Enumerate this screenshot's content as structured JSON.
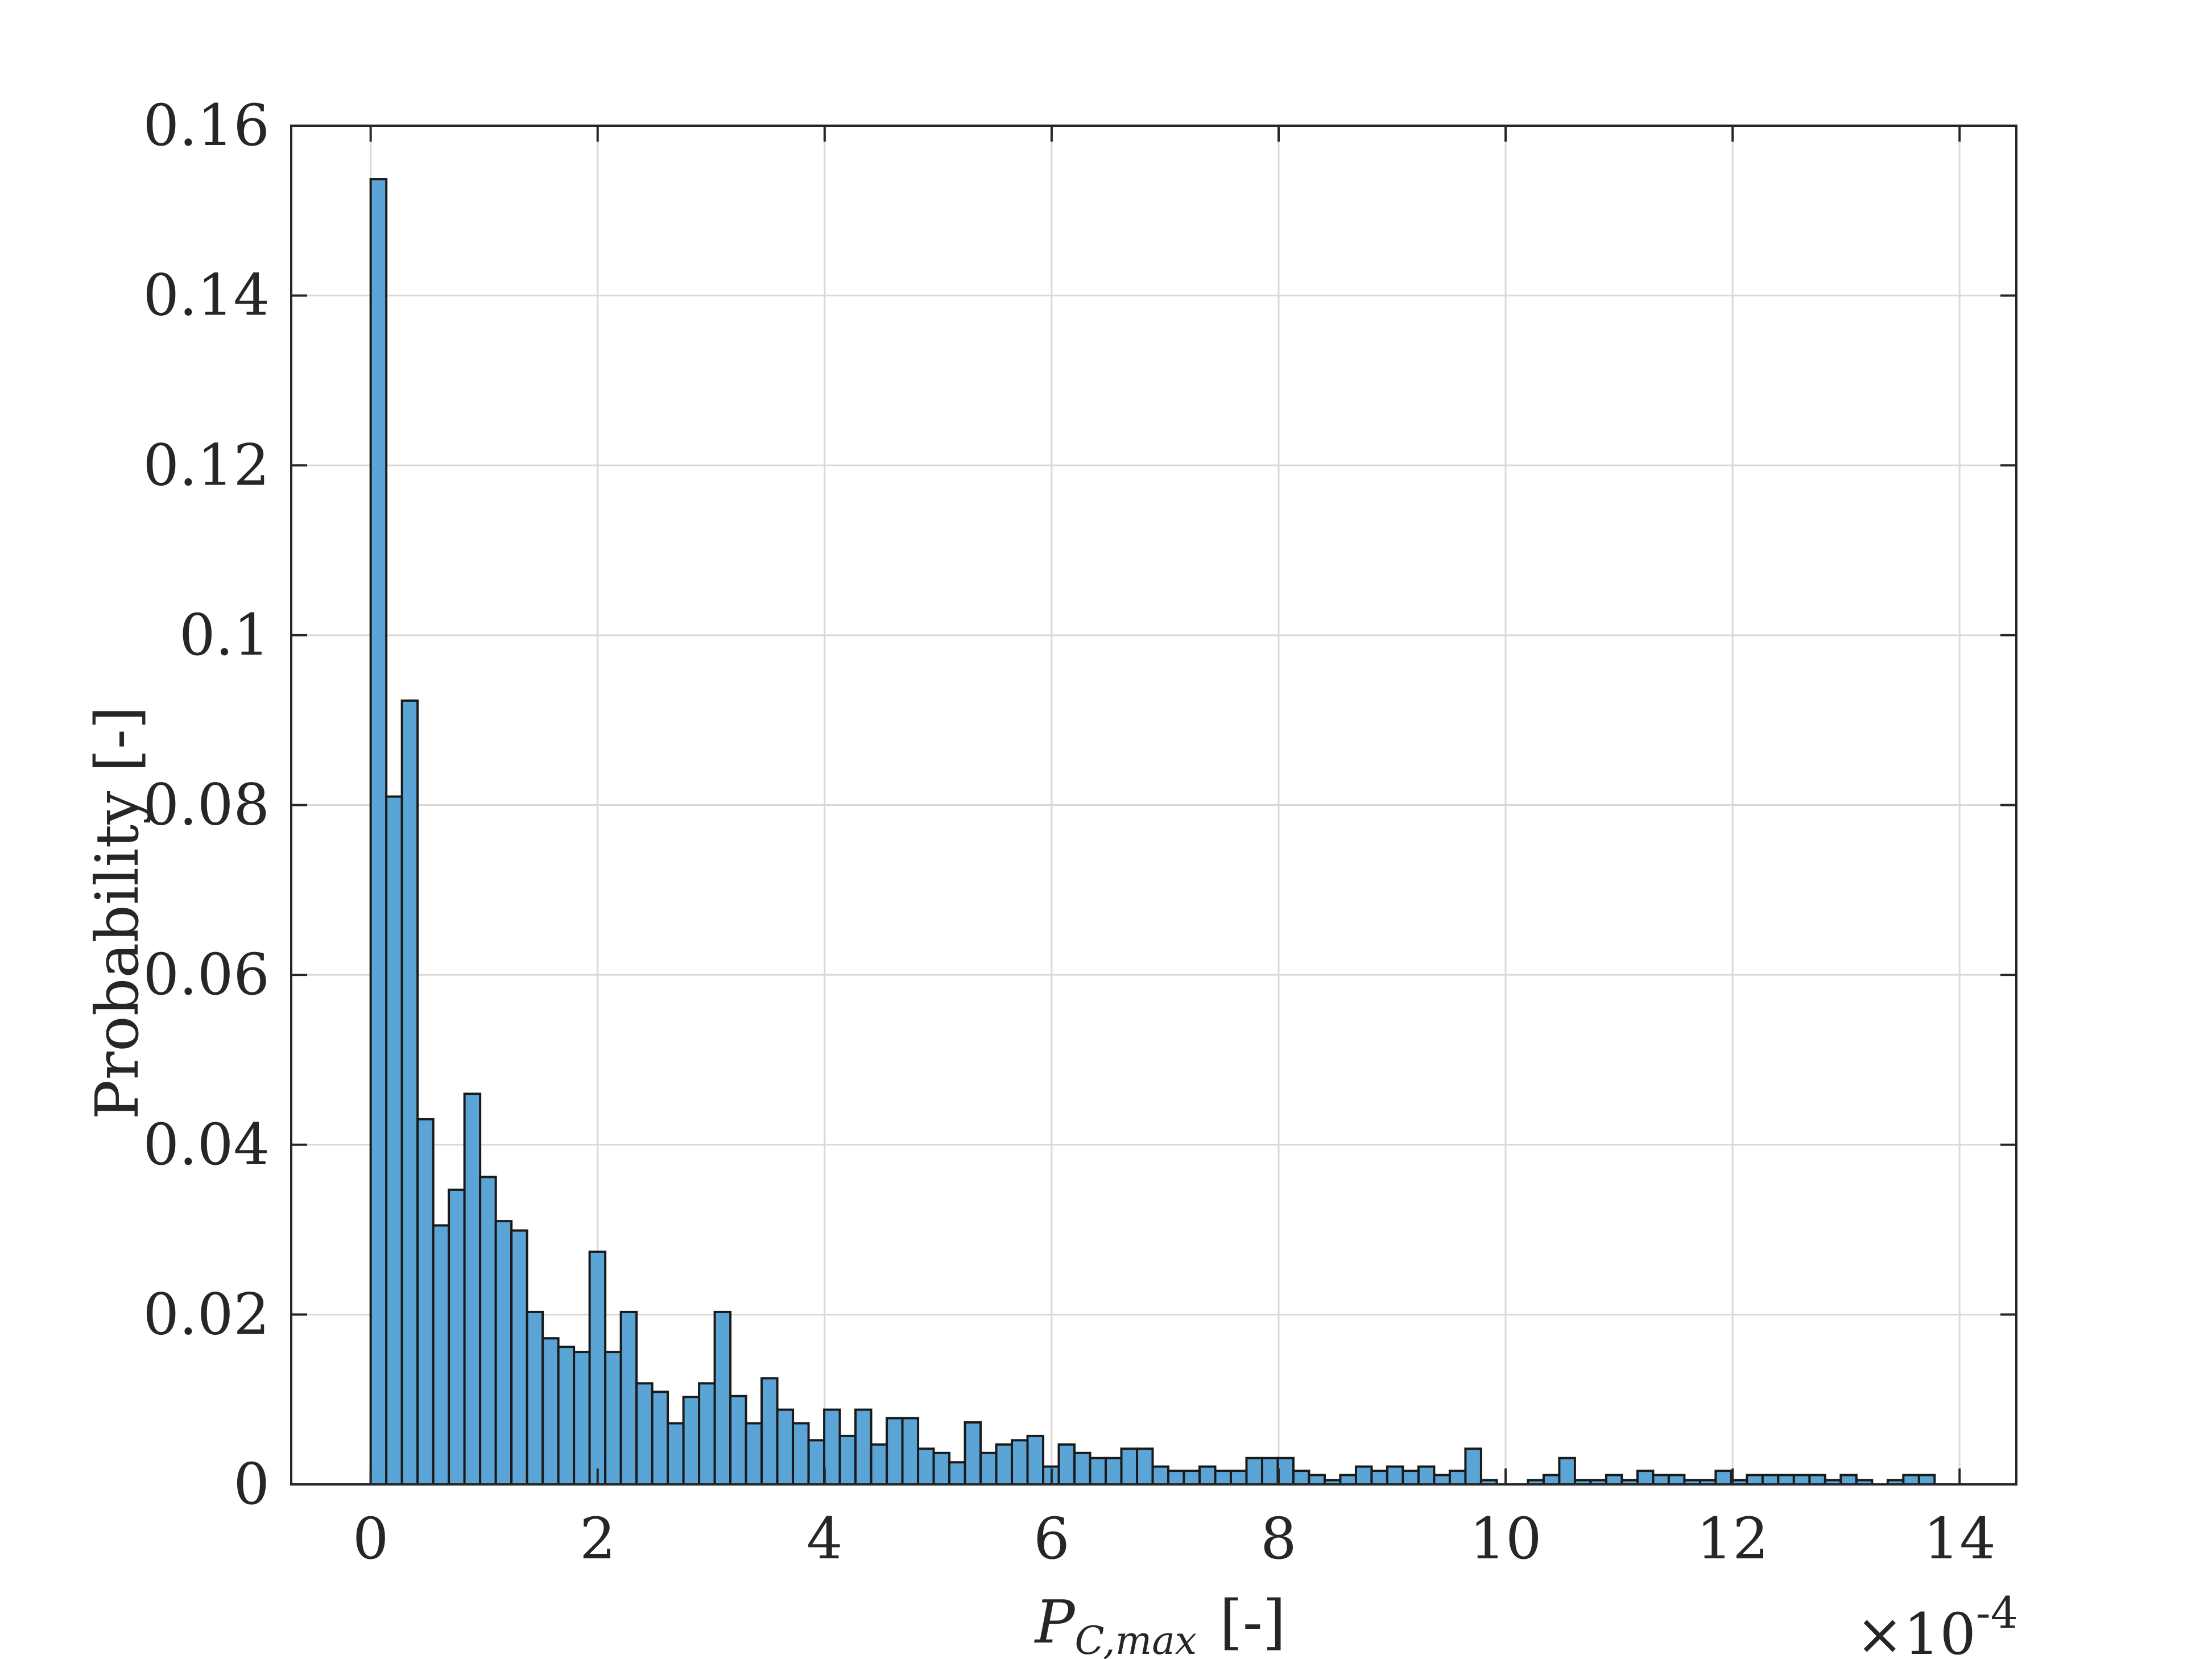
{
  "chart_data": {
    "type": "bar",
    "histogram": true,
    "xlabel_main": "P",
    "xlabel_sub": "C,max",
    "xlabel_unit": "[-]",
    "ylabel": "Probability  [-]",
    "x_exponent_label": "×10",
    "x_exponent_power": "-4",
    "xlim": [
      -0.7,
      14.5
    ],
    "ylim": [
      0,
      0.16
    ],
    "xticks": [
      0,
      2,
      4,
      6,
      8,
      10,
      12,
      14
    ],
    "yticks": [
      0,
      0.02,
      0.04,
      0.06,
      0.08,
      0.1,
      0.12,
      0.14,
      0.16
    ],
    "ytick_labels": [
      "0",
      "0.02",
      "0.04",
      "0.06",
      "0.08",
      "0.1",
      "0.12",
      "0.14",
      "0.16"
    ],
    "bin_start": 0,
    "bin_width": 0.1378,
    "values": [
      0.1537,
      0.081,
      0.0923,
      0.043,
      0.0305,
      0.0347,
      0.046,
      0.0362,
      0.031,
      0.0299,
      0.0203,
      0.0172,
      0.0162,
      0.0156,
      0.0274,
      0.0156,
      0.0203,
      0.0119,
      0.0109,
      0.0072,
      0.0103,
      0.0119,
      0.0203,
      0.0104,
      0.0072,
      0.0125,
      0.0088,
      0.0072,
      0.0052,
      0.0088,
      0.0057,
      0.0088,
      0.0047,
      0.0078,
      0.0078,
      0.0042,
      0.0037,
      0.0026,
      0.0073,
      0.0037,
      0.0047,
      0.0052,
      0.0057,
      0.0021,
      0.0047,
      0.0037,
      0.0031,
      0.0031,
      0.0042,
      0.0042,
      0.0021,
      0.0016,
      0.0016,
      0.0021,
      0.0016,
      0.0016,
      0.0031,
      0.0031,
      0.0031,
      0.0016,
      0.0011,
      0.0005,
      0.0011,
      0.0021,
      0.0016,
      0.0021,
      0.0016,
      0.0021,
      0.0011,
      0.0016,
      0.0042,
      0.0005,
      0,
      0,
      0.0005,
      0.0011,
      0.0031,
      0.0005,
      0.0005,
      0.0011,
      0.0005,
      0.0016,
      0.0011,
      0.0011,
      0.0005,
      0.0005,
      0.0016,
      0.0005,
      0.0011,
      0.0011,
      0.0011,
      0.0011,
      0.0011,
      0.0005,
      0.0011,
      0.0005,
      0,
      0.0005,
      0.0011,
      0.0011
    ],
    "grid": true,
    "colors": {
      "bar_fill": "#5ba4d6",
      "bar_edge": "#1a1a1a",
      "grid": "#d9d9d9",
      "axis": "#262626"
    }
  }
}
